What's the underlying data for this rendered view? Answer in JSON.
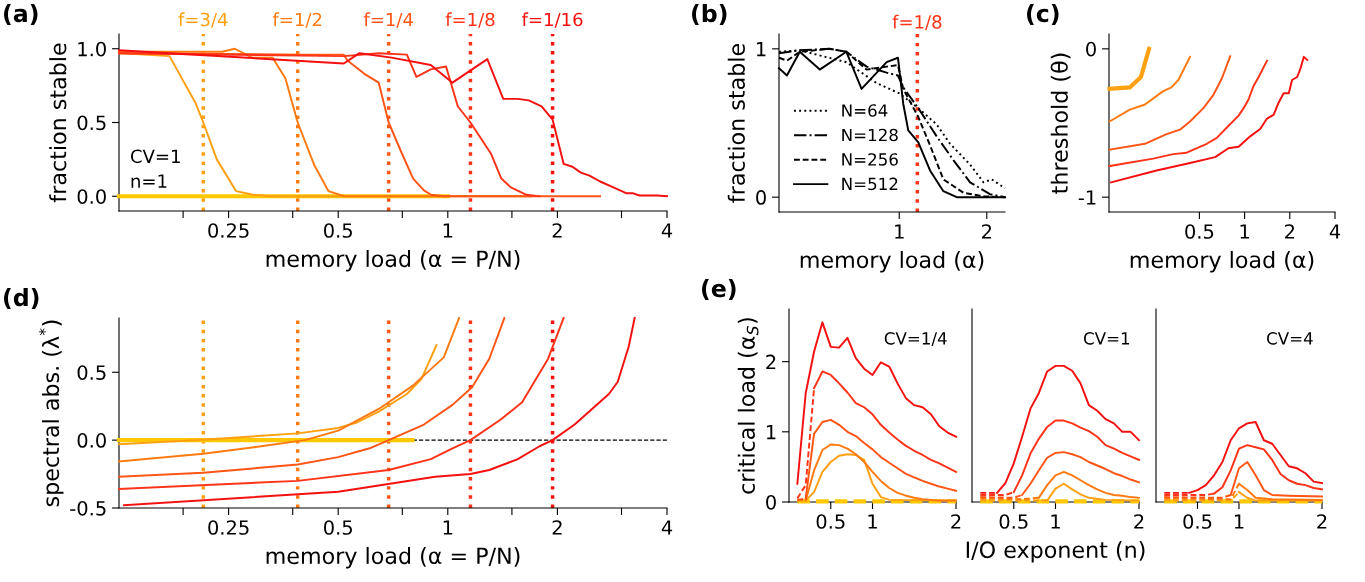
{
  "chart_data": [
    {
      "type": "line",
      "title": "(a)",
      "xlabel": "memory load (α = P/N)",
      "ylabel": "fraction stable",
      "log": "x",
      "xlim": [
        0.125,
        4
      ],
      "ylim": [
        -0.1,
        1.1
      ],
      "xticks": [
        {
          "value": 0.1875,
          "label": null
        },
        0.25,
        {
          "value": 0.375,
          "label": null
        },
        0.5,
        {
          "value": 0.75,
          "label": null
        },
        1,
        {
          "value": 1.5,
          "label": null
        },
        2,
        {
          "value": 3,
          "label": null
        },
        4
      ],
      "yticks": [
        {
          "value": 0,
          "label": "0.0"
        },
        0.5,
        {
          "value": 1,
          "label": "1.0"
        }
      ],
      "annotations": [
        "CV=1",
        "n=1",
        {
          "text": "f=3/4",
          "x": 0.213,
          "y": 1.1
        },
        {
          "text": "f=1/2",
          "x": 0.387,
          "y": 1.1
        },
        {
          "text": "f=1/4",
          "x": 0.688,
          "y": 1.1
        },
        {
          "text": "f=1/8",
          "x": 1.154,
          "y": 1.1
        },
        {
          "text": "f=1/16",
          "x": 1.94,
          "y": 1.1
        }
      ],
      "ref_lines": [
        {
          "axis": "x",
          "value": 0.213,
          "color": "#ffa010",
          "line_style": "dotted"
        },
        {
          "axis": "x",
          "value": 0.387,
          "color": "#ff7a10",
          "line_style": "dotted"
        },
        {
          "axis": "x",
          "value": 0.688,
          "color": "#ff5515",
          "line_style": "dotted"
        },
        {
          "axis": "x",
          "value": 1.154,
          "color": "#ff3318",
          "line_style": "dotted"
        },
        {
          "axis": "x",
          "value": 1.94,
          "color": "#f51010",
          "line_style": "dotted"
        }
      ],
      "series": [
        {
          "color": "#ffc800",
          "x": [
            0.125,
            1.0
          ],
          "values": [
            0,
            0
          ]
        },
        {
          "color": "#ffa010",
          "x": [
            0.125,
            0.172,
            0.203,
            0.213,
            0.232,
            0.262,
            0.292,
            0.324,
            0.6,
            1.0
          ],
          "values": [
            0.97,
            0.95,
            0.63,
            0.5,
            0.25,
            0.035,
            0.01,
            0,
            0,
            0
          ]
        },
        {
          "color": "#ff7a10",
          "x": [
            0.125,
            0.24,
            0.26,
            0.29,
            0.33,
            0.358,
            0.387,
            0.43,
            0.47,
            0.52,
            1.7
          ],
          "values": [
            0.98,
            0.98,
            1.0,
            0.94,
            0.94,
            0.8,
            0.5,
            0.21,
            0.035,
            0,
            0
          ]
        },
        {
          "color": "#ff5515",
          "x": [
            0.125,
            0.4,
            0.518,
            0.53,
            0.59,
            0.646,
            0.688,
            0.745,
            0.803,
            0.86,
            0.9,
            0.98,
            2.62
          ],
          "values": [
            0.97,
            0.96,
            0.96,
            0.92,
            0.83,
            0.77,
            0.5,
            0.3,
            0.12,
            0.04,
            0.01,
            0,
            0
          ]
        },
        {
          "color": "#ff3318",
          "x": [
            0.125,
            0.518,
            0.646,
            0.772,
            0.82,
            0.898,
            0.989,
            1.065,
            1.154,
            1.313,
            1.403,
            1.49,
            1.645,
            1.786
          ],
          "values": [
            0.97,
            0.95,
            0.97,
            0.96,
            0.81,
            0.86,
            0.88,
            0.61,
            0.5,
            0.29,
            0.12,
            0.06,
            0.01,
            0
          ]
        },
        {
          "color": "#f51010",
          "x": [
            0.125,
            0.518,
            0.572,
            0.701,
            0.898,
            1.03,
            1.166,
            1.284,
            1.42,
            1.557,
            1.668,
            1.81,
            1.94,
            2.08,
            2.2,
            2.32,
            2.45,
            2.62,
            2.85,
            3.1,
            3.23,
            3.36,
            3.75,
            4.0
          ],
          "values": [
            0.99,
            0.9,
            0.97,
            0.94,
            0.89,
            0.77,
            0.86,
            0.93,
            0.66,
            0.66,
            0.65,
            0.61,
            0.52,
            0.22,
            0.2,
            0.16,
            0.14,
            0.1,
            0.06,
            0.02,
            0.02,
            0.005,
            0.005,
            0
          ]
        }
      ]
    },
    {
      "type": "line",
      "title": "(b)",
      "xlabel": "memory load (α)",
      "ylabel": "fraction stable",
      "log": "x",
      "xlim": [
        0.386,
        2.31
      ],
      "ylim": [
        -0.1,
        1.1
      ],
      "xticks": [
        1,
        2
      ],
      "yticks": [
        0,
        1
      ],
      "legend": "lower left",
      "ref_lines": [
        {
          "axis": "x",
          "value": 1.154,
          "label": "f=1/8",
          "color": "#ff3318",
          "line_style": "dotted"
        }
      ],
      "series": [
        {
          "name": "N=64",
          "color": "#000000",
          "line_style": "dotted",
          "x": [
            0.386,
            0.455,
            0.547,
            0.658,
            0.835,
            1.0,
            1.163,
            1.345,
            1.495,
            1.752,
            1.948,
            2.08,
            2.31
          ],
          "values": [
            0.98,
            0.99,
            0.95,
            0.91,
            0.77,
            0.7,
            0.6,
            0.49,
            0.36,
            0.22,
            0.1,
            0.12,
            0.06
          ]
        },
        {
          "name": "N=128",
          "color": "#000000",
          "line_style": "dashdot",
          "x": [
            0.386,
            0.455,
            0.577,
            0.658,
            0.772,
            0.905,
            0.99,
            1.032,
            1.163,
            1.345,
            1.535,
            1.752,
            2.05,
            2.31
          ],
          "values": [
            0.97,
            0.99,
            1.0,
            0.98,
            0.88,
            0.84,
            0.82,
            0.74,
            0.6,
            0.41,
            0.25,
            0.1,
            0.02,
            0
          ]
        },
        {
          "name": "N=256",
          "color": "#000000",
          "line_style": "dashed",
          "x": [
            0.386,
            0.411,
            0.455,
            0.577,
            0.658,
            0.772,
            0.905,
            0.99,
            1.032,
            1.163,
            1.276,
            1.418,
            1.662,
            1.948,
            2.31
          ],
          "values": [
            0.94,
            0.92,
            0.98,
            1.0,
            0.98,
            0.86,
            0.88,
            0.89,
            0.73,
            0.54,
            0.35,
            0.12,
            0.03,
            0.006,
            0
          ]
        },
        {
          "name": "N=512",
          "color": "#000000",
          "line_style": "solid",
          "x": [
            0.386,
            0.411,
            0.455,
            0.533,
            0.658,
            0.742,
            0.905,
            0.99,
            1.032,
            1.074,
            1.163,
            1.276,
            1.418,
            1.576,
            2.31
          ],
          "values": [
            0.87,
            0.82,
            0.98,
            0.86,
            0.98,
            0.73,
            0.91,
            0.94,
            0.63,
            0.45,
            0.37,
            0.18,
            0.04,
            0,
            0
          ]
        }
      ]
    },
    {
      "type": "line",
      "title": "(c)",
      "xlabel": "memory load (α)",
      "ylabel": "threshold (θ)",
      "log": "x",
      "xlim": [
        0.125,
        4
      ],
      "ylim": [
        -1.1,
        0.1
      ],
      "xticks": [
        0.5,
        1,
        2,
        4
      ],
      "yticks": [
        {
          "value": -1,
          "label": "-1"
        },
        0
      ],
      "series": [
        {
          "color": "#ffa010",
          "x": [
            0.126,
            0.172,
            0.204,
            0.231
          ],
          "values": [
            -0.27,
            -0.26,
            -0.19,
            0
          ]
        },
        {
          "color": "#ff7a10",
          "x": [
            0.126,
            0.172,
            0.217,
            0.287,
            0.326,
            0.362,
            0.433
          ],
          "values": [
            -0.49,
            -0.41,
            -0.375,
            -0.285,
            -0.26,
            -0.21,
            -0.054
          ]
        },
        {
          "color": "#ff5515",
          "x": [
            0.126,
            0.217,
            0.302,
            0.371,
            0.433,
            0.532,
            0.62,
            0.705,
            0.802
          ],
          "values": [
            -0.68,
            -0.64,
            -0.575,
            -0.545,
            -0.49,
            -0.4,
            -0.31,
            -0.2,
            -0.05
          ]
        },
        {
          "color": "#ff3318",
          "x": [
            0.126,
            0.246,
            0.335,
            0.411,
            0.56,
            0.653,
            0.762,
            0.912,
            0.985,
            1.064,
            1.147,
            1.24,
            1.41
          ],
          "values": [
            -0.79,
            -0.74,
            -0.71,
            -0.7,
            -0.64,
            -0.6,
            -0.53,
            -0.45,
            -0.4,
            -0.34,
            -0.25,
            -0.19,
            -0.08
          ]
        },
        {
          "color": "#f51010",
          "x": [
            0.129,
            0.259,
            0.433,
            0.637,
            0.78,
            0.912,
            1.09,
            1.27,
            1.41,
            1.56,
            1.69,
            1.82,
            1.97,
            2.07,
            2.24,
            2.36,
            2.48,
            2.61
          ],
          "values": [
            -0.9,
            -0.82,
            -0.77,
            -0.73,
            -0.67,
            -0.66,
            -0.59,
            -0.54,
            -0.47,
            -0.445,
            -0.36,
            -0.3,
            -0.3,
            -0.21,
            -0.19,
            -0.13,
            -0.054,
            -0.075
          ]
        }
      ]
    },
    {
      "type": "line",
      "title": "(d)",
      "xlabel": "memory load (α = P/N)",
      "ylabel": "spectral abs. (λ$^{*}$)",
      "log": "x",
      "xlim": [
        0.125,
        4
      ],
      "ylim": [
        -0.5,
        0.9
      ],
      "xticks": [
        {
          "value": 0.1875,
          "label": null
        },
        0.25,
        {
          "value": 0.375,
          "label": null
        },
        0.5,
        {
          "value": 0.75,
          "label": null
        },
        1,
        {
          "value": 1.5,
          "label": null
        },
        2,
        {
          "value": 3,
          "label": null
        },
        4
      ],
      "yticks": [
        -0.5,
        {
          "value": 0,
          "label": "0.0"
        },
        0.5
      ],
      "ref_lines": [
        {
          "axis": "y",
          "value": 0,
          "color": "#000000",
          "line_style": "dashed"
        },
        {
          "axis": "x",
          "value": 0.213,
          "color": "#ffa010",
          "line_style": "dotted"
        },
        {
          "axis": "x",
          "value": 0.387,
          "color": "#ff7a10",
          "line_style": "dotted"
        },
        {
          "axis": "x",
          "value": 0.688,
          "color": "#ff5515",
          "line_style": "dotted"
        },
        {
          "axis": "x",
          "value": 1.154,
          "color": "#ff3318",
          "line_style": "dotted"
        },
        {
          "axis": "x",
          "value": 1.94,
          "color": "#f51010",
          "line_style": "dotted"
        }
      ],
      "series": [
        {
          "color": "#ffc800",
          "x": [
            0.125,
            0.8
          ],
          "values": [
            0,
            0
          ]
        },
        {
          "color": "#ffa010",
          "x": [
            0.125,
            0.213,
            0.387,
            0.5,
            0.563,
            0.646,
            0.772,
            0.846,
            0.931
          ],
          "values": [
            -0.03,
            0.003,
            0.05,
            0.09,
            0.13,
            0.21,
            0.34,
            0.45,
            0.7
          ]
        },
        {
          "color": "#ff7a10",
          "x": [
            0.125,
            0.213,
            0.307,
            0.405,
            0.5,
            0.646,
            0.8,
            0.975,
            1.074
          ],
          "values": [
            -0.157,
            -0.1,
            -0.045,
            0,
            0.07,
            0.23,
            0.4,
            0.61,
            0.9
          ]
        },
        {
          "color": "#ff5515",
          "x": [
            0.125,
            0.213,
            0.387,
            0.5,
            0.61,
            0.688,
            0.86,
            1.03,
            1.166,
            1.3,
            1.43
          ],
          "values": [
            -0.27,
            -0.24,
            -0.18,
            -0.125,
            -0.06,
            0,
            0.115,
            0.26,
            0.39,
            0.6,
            0.9
          ]
        },
        {
          "color": "#ff3318",
          "x": [
            0.125,
            0.387,
            0.688,
            0.898,
            1.03,
            1.154,
            1.395,
            1.6,
            1.886,
            2.08
          ],
          "values": [
            -0.36,
            -0.3,
            -0.22,
            -0.14,
            -0.06,
            0,
            0.15,
            0.28,
            0.6,
            0.9
          ]
        },
        {
          "color": "#f51010",
          "x": [
            0.129,
            0.5,
            0.923,
            1.154,
            1.3,
            1.557,
            1.786,
            1.94,
            2.23,
            2.77,
            2.93,
            3.14,
            3.26
          ],
          "values": [
            -0.48,
            -0.38,
            -0.27,
            -0.25,
            -0.22,
            -0.14,
            -0.045,
            0,
            0.115,
            0.34,
            0.43,
            0.69,
            0.9
          ]
        }
      ]
    },
    {
      "type": "line",
      "title": "(e)",
      "ylabel": "critical load (α$_{S}$)",
      "xlim": [
        0,
        2
      ],
      "ylim": [
        0,
        2.75
      ],
      "xticks": [
        0.5,
        1,
        2
      ],
      "yticks": [
        0,
        1,
        2
      ],
      "annotations": [
        "CV=1/4"
      ],
      "series": [
        {
          "color": "#ffc800",
          "line_style": "dashed",
          "x": [
            0.1,
            2.0
          ],
          "values": [
            0.01,
            0.01
          ]
        },
        {
          "color": "#ffa010",
          "line_style": "dashed",
          "x": [
            0.1,
            0.2
          ],
          "values": [
            0.02,
            0.02
          ]
        },
        {
          "color": "#ffa010",
          "x": [
            0.2,
            0.3,
            0.4,
            0.5,
            0.6,
            0.7,
            0.8,
            0.9,
            1.0,
            1.1,
            1.2,
            2.0
          ],
          "values": [
            0.02,
            0.14,
            0.43,
            0.57,
            0.66,
            0.68,
            0.67,
            0.6,
            0.26,
            0.07,
            0.03,
            0.02
          ]
        },
        {
          "color": "#ff7a10",
          "line_style": "dashed",
          "x": [
            0.1,
            0.2
          ],
          "values": [
            0.03,
            0.02
          ]
        },
        {
          "color": "#ff7a10",
          "x": [
            0.2,
            0.3,
            0.4,
            0.5,
            0.6,
            0.7,
            0.8,
            0.9,
            1.0,
            1.1,
            1.2,
            1.3,
            1.4,
            1.5,
            1.6,
            1.7,
            1.8,
            2.0
          ],
          "values": [
            0.02,
            0.45,
            0.74,
            0.82,
            0.81,
            0.76,
            0.68,
            0.57,
            0.43,
            0.3,
            0.2,
            0.13,
            0.09,
            0.06,
            0.04,
            0.03,
            0.02,
            0.02
          ]
        },
        {
          "color": "#ff5515",
          "line_style": "dashed",
          "x": [
            0.1,
            0.2
          ],
          "values": [
            0.03,
            0.05
          ]
        },
        {
          "color": "#ff5515",
          "x": [
            0.2,
            0.3,
            0.4,
            0.5,
            0.6,
            0.7,
            0.8,
            0.9,
            1.0,
            1.1,
            1.2,
            1.3,
            1.4,
            1.5,
            1.6,
            1.7,
            1.8,
            1.9,
            2.0
          ],
          "values": [
            0.05,
            0.97,
            1.14,
            1.17,
            1.1,
            1.0,
            0.94,
            0.84,
            0.75,
            0.64,
            0.56,
            0.48,
            0.4,
            0.35,
            0.3,
            0.26,
            0.22,
            0.19,
            0.16
          ]
        },
        {
          "color": "#ff3318",
          "line_style": "dashed",
          "x": [
            0.1,
            0.2,
            0.3
          ],
          "values": [
            0.05,
            0.24,
            1.62
          ]
        },
        {
          "color": "#ff3318",
          "x": [
            0.3,
            0.4,
            0.5,
            0.6,
            0.7,
            0.8,
            0.9,
            1.0,
            1.1,
            1.2,
            1.3,
            1.4,
            1.5,
            1.6,
            1.7,
            1.8,
            1.9,
            2.0
          ],
          "values": [
            1.62,
            1.86,
            1.81,
            1.69,
            1.56,
            1.41,
            1.35,
            1.25,
            1.1,
            0.99,
            0.89,
            0.8,
            0.73,
            0.67,
            0.6,
            0.55,
            0.49,
            0.43
          ]
        },
        {
          "color": "#f51010",
          "x": [
            0.1,
            0.2,
            0.3,
            0.4,
            0.5,
            0.6,
            0.7,
            0.8,
            0.9,
            1.0,
            1.1,
            1.2,
            1.3,
            1.4,
            1.5,
            1.6,
            1.7,
            1.8,
            1.9,
            2.0
          ],
          "values": [
            0.26,
            1.55,
            2.14,
            2.56,
            2.21,
            2.2,
            2.34,
            2.05,
            1.9,
            1.81,
            1.99,
            1.93,
            1.69,
            1.48,
            1.38,
            1.35,
            1.25,
            1.08,
            0.99,
            0.93
          ]
        }
      ]
    },
    {
      "type": "line",
      "xlabel": "I/O exponent (n)",
      "xlim": [
        0,
        2
      ],
      "ylim": [
        0,
        2.75
      ],
      "xticks": [
        0.5,
        1,
        2
      ],
      "yticks": [
        0,
        1,
        2
      ],
      "tick_labels": "x",
      "annotations": [
        "CV=1"
      ],
      "series": [
        {
          "color": "#ffc800",
          "line_style": "dashed",
          "x": [
            0.1,
            2.0
          ],
          "values": [
            0.01,
            0.01
          ]
        },
        {
          "color": "#ffa010",
          "line_style": "dashed",
          "x": [
            0.1,
            0.9
          ],
          "values": [
            0.02,
            0.02
          ]
        },
        {
          "color": "#ffa010",
          "x": [
            0.9,
            1.0,
            1.1,
            1.2,
            1.3,
            1.4,
            1.6,
            2.0
          ],
          "values": [
            0.02,
            0.19,
            0.26,
            0.18,
            0.11,
            0.06,
            0.03,
            0.02
          ]
        },
        {
          "color": "#ff7a10",
          "line_style": "dashed",
          "x": [
            0.1,
            0.6,
            0.8
          ],
          "values": [
            0.05,
            0.04,
            0.06
          ]
        },
        {
          "color": "#ff7a10",
          "x": [
            0.8,
            0.9,
            1.0,
            1.1,
            1.2,
            1.3,
            1.4,
            1.5,
            1.6,
            1.7,
            1.8,
            1.9,
            2.0
          ],
          "values": [
            0.06,
            0.24,
            0.38,
            0.43,
            0.38,
            0.31,
            0.24,
            0.18,
            0.13,
            0.1,
            0.09,
            0.07,
            0.06
          ]
        },
        {
          "color": "#ff5515",
          "line_style": "dashed",
          "x": [
            0.1,
            0.5,
            0.6
          ],
          "values": [
            0.07,
            0.06,
            0.1
          ]
        },
        {
          "color": "#ff5515",
          "x": [
            0.6,
            0.7,
            0.8,
            0.9,
            1.0,
            1.1,
            1.2,
            1.3,
            1.4,
            1.5,
            1.6,
            1.7,
            1.8,
            1.9,
            2.0
          ],
          "values": [
            0.1,
            0.26,
            0.45,
            0.63,
            0.7,
            0.71,
            0.68,
            0.64,
            0.57,
            0.52,
            0.47,
            0.41,
            0.37,
            0.32,
            0.28
          ]
        },
        {
          "color": "#ff3318",
          "line_style": "dashed",
          "x": [
            0.1,
            0.4,
            0.5
          ],
          "values": [
            0.1,
            0.1,
            0.14
          ]
        },
        {
          "color": "#ff3318",
          "x": [
            0.5,
            0.6,
            0.7,
            0.8,
            0.9,
            1.0,
            1.1,
            1.2,
            1.3,
            1.4,
            1.5,
            1.6,
            1.7,
            1.8,
            1.9,
            2.0
          ],
          "values": [
            0.14,
            0.38,
            0.69,
            0.9,
            1.07,
            1.16,
            1.16,
            1.12,
            1.06,
            1.01,
            0.93,
            0.81,
            0.76,
            0.7,
            0.65,
            0.6
          ]
        },
        {
          "color": "#f51010",
          "line_style": "dashed",
          "x": [
            0.1,
            0.3
          ],
          "values": [
            0.13,
            0.13
          ]
        },
        {
          "color": "#f51010",
          "x": [
            0.3,
            0.4,
            0.5,
            0.6,
            0.7,
            0.8,
            0.9,
            1.0,
            1.1,
            1.2,
            1.3,
            1.4,
            1.5,
            1.6,
            1.7,
            1.8,
            1.9,
            2.0
          ],
          "values": [
            0.13,
            0.27,
            0.55,
            0.93,
            1.33,
            1.55,
            1.86,
            1.94,
            1.94,
            1.87,
            1.69,
            1.38,
            1.3,
            1.18,
            1.12,
            1.0,
            1.0,
            0.88
          ]
        }
      ]
    },
    {
      "type": "line",
      "xlim": [
        0,
        2
      ],
      "ylim": [
        0,
        2.75
      ],
      "xticks": [
        0.5,
        1,
        2
      ],
      "yticks": [
        0,
        1,
        2
      ],
      "tick_labels": "x",
      "annotations": [
        "CV=4"
      ],
      "series": [
        {
          "color": "#ffc800",
          "line_style": "dashed",
          "x": [
            0.1,
            2.0
          ],
          "values": [
            0.01,
            0.01
          ]
        },
        {
          "color": "#ffa010",
          "line_style": "dashed",
          "x": [
            0.1,
            0.9,
            1.0
          ],
          "values": [
            0.02,
            0.02,
            0.14
          ]
        },
        {
          "color": "#ffa010",
          "x": [
            1.0,
            1.1,
            1.2,
            2.0
          ],
          "values": [
            0.14,
            0.06,
            0.02,
            0.02
          ]
        },
        {
          "color": "#ff7a10",
          "line_style": "dashed",
          "x": [
            0.1,
            0.9,
            1.0
          ],
          "values": [
            0.05,
            0.04,
            0.26
          ]
        },
        {
          "color": "#ff7a10",
          "x": [
            1.0,
            1.1,
            1.2,
            1.4,
            2.0
          ],
          "values": [
            0.26,
            0.17,
            0.06,
            0.04,
            0.03
          ]
        },
        {
          "color": "#ff5515",
          "line_style": "dashed",
          "x": [
            0.1,
            0.8,
            0.9
          ],
          "values": [
            0.07,
            0.06,
            0.1
          ]
        },
        {
          "color": "#ff5515",
          "x": [
            0.9,
            1.0,
            1.1,
            1.2,
            1.3,
            1.4,
            1.6,
            2.0
          ],
          "values": [
            0.1,
            0.48,
            0.57,
            0.38,
            0.17,
            0.1,
            0.09,
            0.08
          ]
        },
        {
          "color": "#ff3318",
          "line_style": "dashed",
          "x": [
            0.1,
            0.6,
            0.7
          ],
          "values": [
            0.1,
            0.1,
            0.12
          ]
        },
        {
          "color": "#ff3318",
          "x": [
            0.7,
            0.8,
            0.9,
            1.0,
            1.1,
            1.2,
            1.3,
            1.4,
            1.5,
            1.6,
            1.7,
            1.8,
            1.9,
            2.0
          ],
          "values": [
            0.12,
            0.21,
            0.45,
            0.76,
            0.81,
            0.78,
            0.75,
            0.6,
            0.4,
            0.31,
            0.26,
            0.24,
            0.2,
            0.18
          ]
        },
        {
          "color": "#f51010",
          "line_style": "dashed",
          "x": [
            0.1,
            0.4
          ],
          "values": [
            0.13,
            0.13
          ]
        },
        {
          "color": "#f51010",
          "x": [
            0.4,
            0.5,
            0.6,
            0.7,
            0.8,
            0.9,
            1.0,
            1.1,
            1.2,
            1.3,
            1.4,
            1.5,
            1.6,
            1.7,
            1.8,
            1.9,
            2.0
          ],
          "values": [
            0.13,
            0.17,
            0.24,
            0.38,
            0.57,
            0.88,
            1.05,
            1.12,
            1.14,
            0.88,
            0.83,
            0.67,
            0.51,
            0.48,
            0.41,
            0.29,
            0.27
          ]
        }
      ]
    }
  ]
}
